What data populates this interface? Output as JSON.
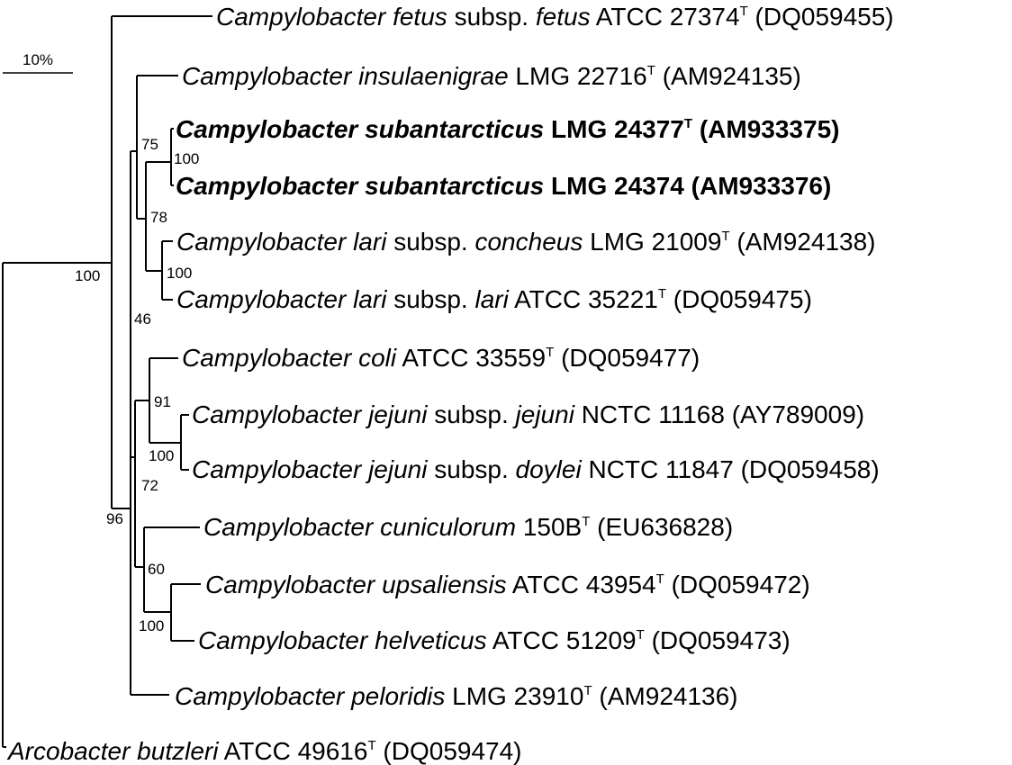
{
  "scale_bar": {
    "label": "10%"
  },
  "taxa": [
    {
      "id": "fetus",
      "genus": "Campylobacter",
      "epithet": "fetus",
      "subsp_word": "subsp.",
      "subsp": "fetus",
      "strain": "ATCC 27374",
      "type": "T",
      "accession": "(DQ059455)",
      "bold": false
    },
    {
      "id": "insulaenigrae",
      "genus": "Campylobacter",
      "epithet": "insulaenigrae",
      "subsp_word": "",
      "subsp": "",
      "strain": "LMG 22716",
      "type": "T",
      "accession": "(AM924135)",
      "bold": false
    },
    {
      "id": "subant1",
      "genus": "Campylobacter",
      "epithet": "subantarcticus",
      "subsp_word": "",
      "subsp": "",
      "strain": "LMG 24377",
      "type": "T",
      "accession": "(AM933375)",
      "bold": true
    },
    {
      "id": "subant2",
      "genus": "Campylobacter",
      "epithet": "subantarcticus",
      "subsp_word": "",
      "subsp": "",
      "strain": "LMG 24374",
      "type": "",
      "accession": "(AM933376)",
      "bold": true
    },
    {
      "id": "concheus",
      "genus": "Campylobacter",
      "epithet": "lari",
      "subsp_word": "subsp.",
      "subsp": "concheus",
      "strain": "LMG 21009",
      "type": "T",
      "accession": "(AM924138)",
      "bold": false
    },
    {
      "id": "lari",
      "genus": "Campylobacter",
      "epithet": "lari",
      "subsp_word": "subsp.",
      "subsp": "lari",
      "strain": "ATCC 35221",
      "type": "T",
      "accession": "(DQ059475)",
      "bold": false
    },
    {
      "id": "coli",
      "genus": "Campylobacter",
      "epithet": "coli",
      "subsp_word": "",
      "subsp": "",
      "strain": "ATCC 33559",
      "type": "T",
      "accession": "(DQ059477)",
      "bold": false
    },
    {
      "id": "jejuni",
      "genus": "Campylobacter",
      "epithet": "jejuni",
      "subsp_word": "subsp.",
      "subsp": "jejuni",
      "strain": "NCTC 11168",
      "type": "",
      "accession": "(AY789009)",
      "bold": false
    },
    {
      "id": "doylei",
      "genus": "Campylobacter",
      "epithet": "jejuni",
      "subsp_word": "subsp.",
      "subsp": "doylei",
      "strain": "NCTC 11847",
      "type": "",
      "accession": "(DQ059458)",
      "bold": false
    },
    {
      "id": "cuniculorum",
      "genus": "Campylobacter",
      "epithet": "cuniculorum",
      "subsp_word": "",
      "subsp": "",
      "strain": "150B",
      "type": "T",
      "accession": "(EU636828)",
      "bold": false
    },
    {
      "id": "upsaliensis",
      "genus": "Campylobacter",
      "epithet": "upsaliensis",
      "subsp_word": "",
      "subsp": "",
      "strain": "ATCC 43954",
      "type": "T",
      "accession": "(DQ059472)",
      "bold": false
    },
    {
      "id": "helveticus",
      "genus": "Campylobacter",
      "epithet": "helveticus",
      "subsp_word": "",
      "subsp": "",
      "strain": "ATCC 51209",
      "type": "T",
      "accession": "(DQ059473)",
      "bold": false
    },
    {
      "id": "peloridis",
      "genus": "Campylobacter",
      "epithet": "peloridis",
      "subsp_word": "",
      "subsp": "",
      "strain": "LMG 23910",
      "type": "T",
      "accession": "(AM924136)",
      "bold": false
    },
    {
      "id": "butzleri",
      "genus": "Arcobacter",
      "epithet": "butzleri",
      "subsp_word": "",
      "subsp": "",
      "strain": "ATCC 49616",
      "type": "T",
      "accession": "(DQ059474)",
      "bold": false
    }
  ],
  "bootstrap": [
    {
      "id": "b75",
      "value": "75"
    },
    {
      "id": "b100_subant",
      "value": "100"
    },
    {
      "id": "b78",
      "value": "78"
    },
    {
      "id": "b100_lari",
      "value": "100"
    },
    {
      "id": "b100_root",
      "value": "100"
    },
    {
      "id": "b46",
      "value": "46"
    },
    {
      "id": "b91",
      "value": "91"
    },
    {
      "id": "b100_jejuni",
      "value": "100"
    },
    {
      "id": "b72",
      "value": "72"
    },
    {
      "id": "b96",
      "value": "96"
    },
    {
      "id": "b60",
      "value": "60"
    },
    {
      "id": "b100_ups",
      "value": "100"
    }
  ]
}
